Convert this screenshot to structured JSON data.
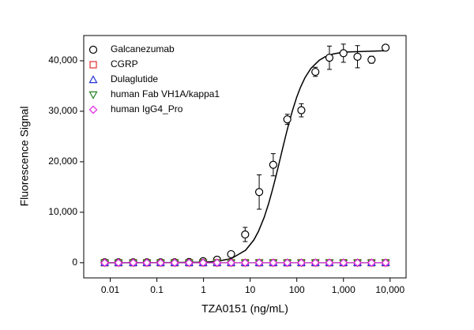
{
  "chart_data": {
    "type": "scatter",
    "xlabel": "TZA0151 (ng/mL)",
    "ylabel": "Fluorescence Signal",
    "log_x": true,
    "legend": "upper left",
    "xlim": [
      0.0027,
      22000
    ],
    "ylim": [
      -3000,
      45000
    ],
    "xticks": [
      0.01,
      0.1,
      1,
      10,
      100,
      {
        "value": 1000,
        "label": "1,000"
      },
      {
        "value": 10000,
        "label": "10,000"
      }
    ],
    "yticks": [
      0,
      {
        "value": 10000,
        "label": "10,000"
      },
      {
        "value": 20000,
        "label": "20,000"
      },
      {
        "value": 30000,
        "label": "30,000"
      },
      {
        "value": 40000,
        "label": "40,000"
      }
    ],
    "x": [
      0.0076,
      0.015,
      0.031,
      0.061,
      0.12,
      0.24,
      0.49,
      0.98,
      1.95,
      3.9,
      7.8,
      15.6,
      31.25,
      62.5,
      125,
      250,
      500,
      1000,
      2000,
      4000,
      8000
    ],
    "series": [
      {
        "name": "Galcanezumab",
        "color": "#000000",
        "marker": "circle",
        "values": [
          100,
          100,
          100,
          100,
          100,
          100,
          150,
          300,
          600,
          1700,
          5600,
          14000,
          19400,
          28400,
          30200,
          37800,
          40600,
          41500,
          40800,
          40200,
          42600
        ],
        "errors": [
          0,
          0,
          0,
          0,
          0,
          0,
          0,
          100,
          300,
          400,
          1400,
          3400,
          2200,
          1000,
          1300,
          900,
          2300,
          1800,
          2200,
          700,
          400
        ]
      },
      {
        "name": "CGRP",
        "color": "#e03030",
        "marker": "square",
        "values": [
          0,
          0,
          0,
          0,
          0,
          0,
          0,
          0,
          0,
          0,
          0,
          0,
          0,
          0,
          0,
          0,
          0,
          0,
          0,
          0,
          0
        ]
      },
      {
        "name": "Dulaglutide",
        "color": "#2030d0",
        "marker": "triangle",
        "values": [
          0,
          0,
          0,
          0,
          0,
          0,
          0,
          0,
          0,
          0,
          0,
          0,
          0,
          0,
          0,
          0,
          0,
          0,
          0,
          0,
          0
        ]
      },
      {
        "name": "human Fab VH1A/kappa1",
        "color": "#208020",
        "marker": "triangle-down",
        "values": [
          0,
          0,
          0,
          0,
          0,
          0,
          0,
          0,
          0,
          0,
          0,
          0,
          0,
          0,
          0,
          0,
          0,
          0,
          0,
          0,
          0
        ]
      },
      {
        "name": "human IgG4_Pro",
        "color": "#e020e0",
        "marker": "diamond",
        "values": [
          0,
          0,
          0,
          0,
          0,
          0,
          0,
          0,
          0,
          0,
          0,
          0,
          0,
          0,
          0,
          0,
          0,
          0,
          0,
          0,
          0
        ]
      }
    ],
    "fit": {
      "color": "#000000",
      "x": [
        0.0076,
        0.1,
        1,
        2,
        4,
        8,
        12,
        15,
        20,
        25,
        30,
        35,
        40,
        45,
        50,
        60,
        70,
        80,
        100,
        120,
        150,
        200,
        300,
        400,
        600,
        1000,
        8000
      ],
      "values": [
        0,
        2,
        95,
        286,
        856,
        2490,
        4520,
        6180,
        9010,
        11790,
        14420,
        16830,
        19020,
        21000,
        22770,
        25750,
        28130,
        30030,
        32850,
        34760,
        36660,
        38470,
        40070,
        40760,
        41340,
        41710,
        41990
      ]
    }
  }
}
